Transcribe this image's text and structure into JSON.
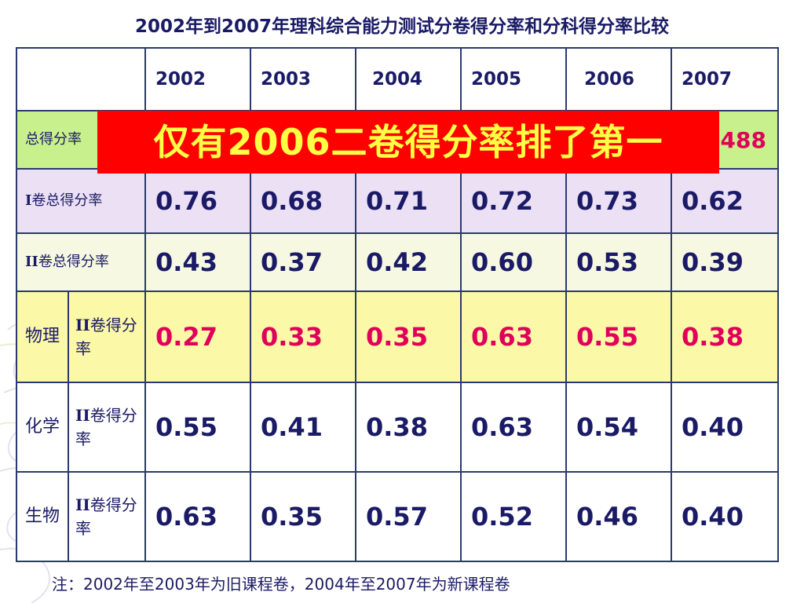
{
  "title": "2002年到2007年理科综合能力测试分卷得分率和分科得分率比较",
  "years": [
    "2002",
    "2003",
    "2004",
    "2005",
    "2006",
    "2007"
  ],
  "rows": {
    "total": {
      "label": "总得分率",
      "last_value": "0.488"
    },
    "paper1": {
      "label_prefix": "I",
      "label": "卷总得分率",
      "values": [
        "0.76",
        "0.68",
        "0.71",
        "0.72",
        "0.73",
        "0.62"
      ]
    },
    "paper2": {
      "label_prefix": "II",
      "label": "卷总得分率",
      "values": [
        "0.43",
        "0.37",
        "0.42",
        "0.60",
        "0.53",
        "0.39"
      ]
    },
    "physics": {
      "subject": "物理",
      "sub_prefix": "II",
      "sub": "卷得分率",
      "values": [
        "0.27",
        "0.33",
        "0.35",
        "0.63",
        "0.55",
        "0.38"
      ]
    },
    "chemistry": {
      "subject": "化学",
      "sub_prefix": "II",
      "sub": "卷得分率",
      "values": [
        "0.55",
        "0.41",
        "0.38",
        "0.63",
        "0.54",
        "0.40"
      ]
    },
    "biology": {
      "subject": "生物",
      "sub_prefix": "II",
      "sub": "卷得分率",
      "values": [
        "0.63",
        "0.35",
        "0.57",
        "0.52",
        "0.46",
        "0.40"
      ]
    }
  },
  "banner": "仅有2006二卷得分率排了第一",
  "note": "注：2002年至2003年为旧课程卷，2004年至2007年为新课程卷",
  "colors": {
    "text": "#1a1a66",
    "highlight_red": "#e0005a",
    "banner_bg": "#ff0000",
    "banner_text": "#ffff44",
    "row_total_bg": "#c8f08c",
    "row_paper1_bg": "#ece0f5",
    "row_paper2_bg": "#f6f8e2",
    "row_physics_bg": "#fbf8a8"
  }
}
